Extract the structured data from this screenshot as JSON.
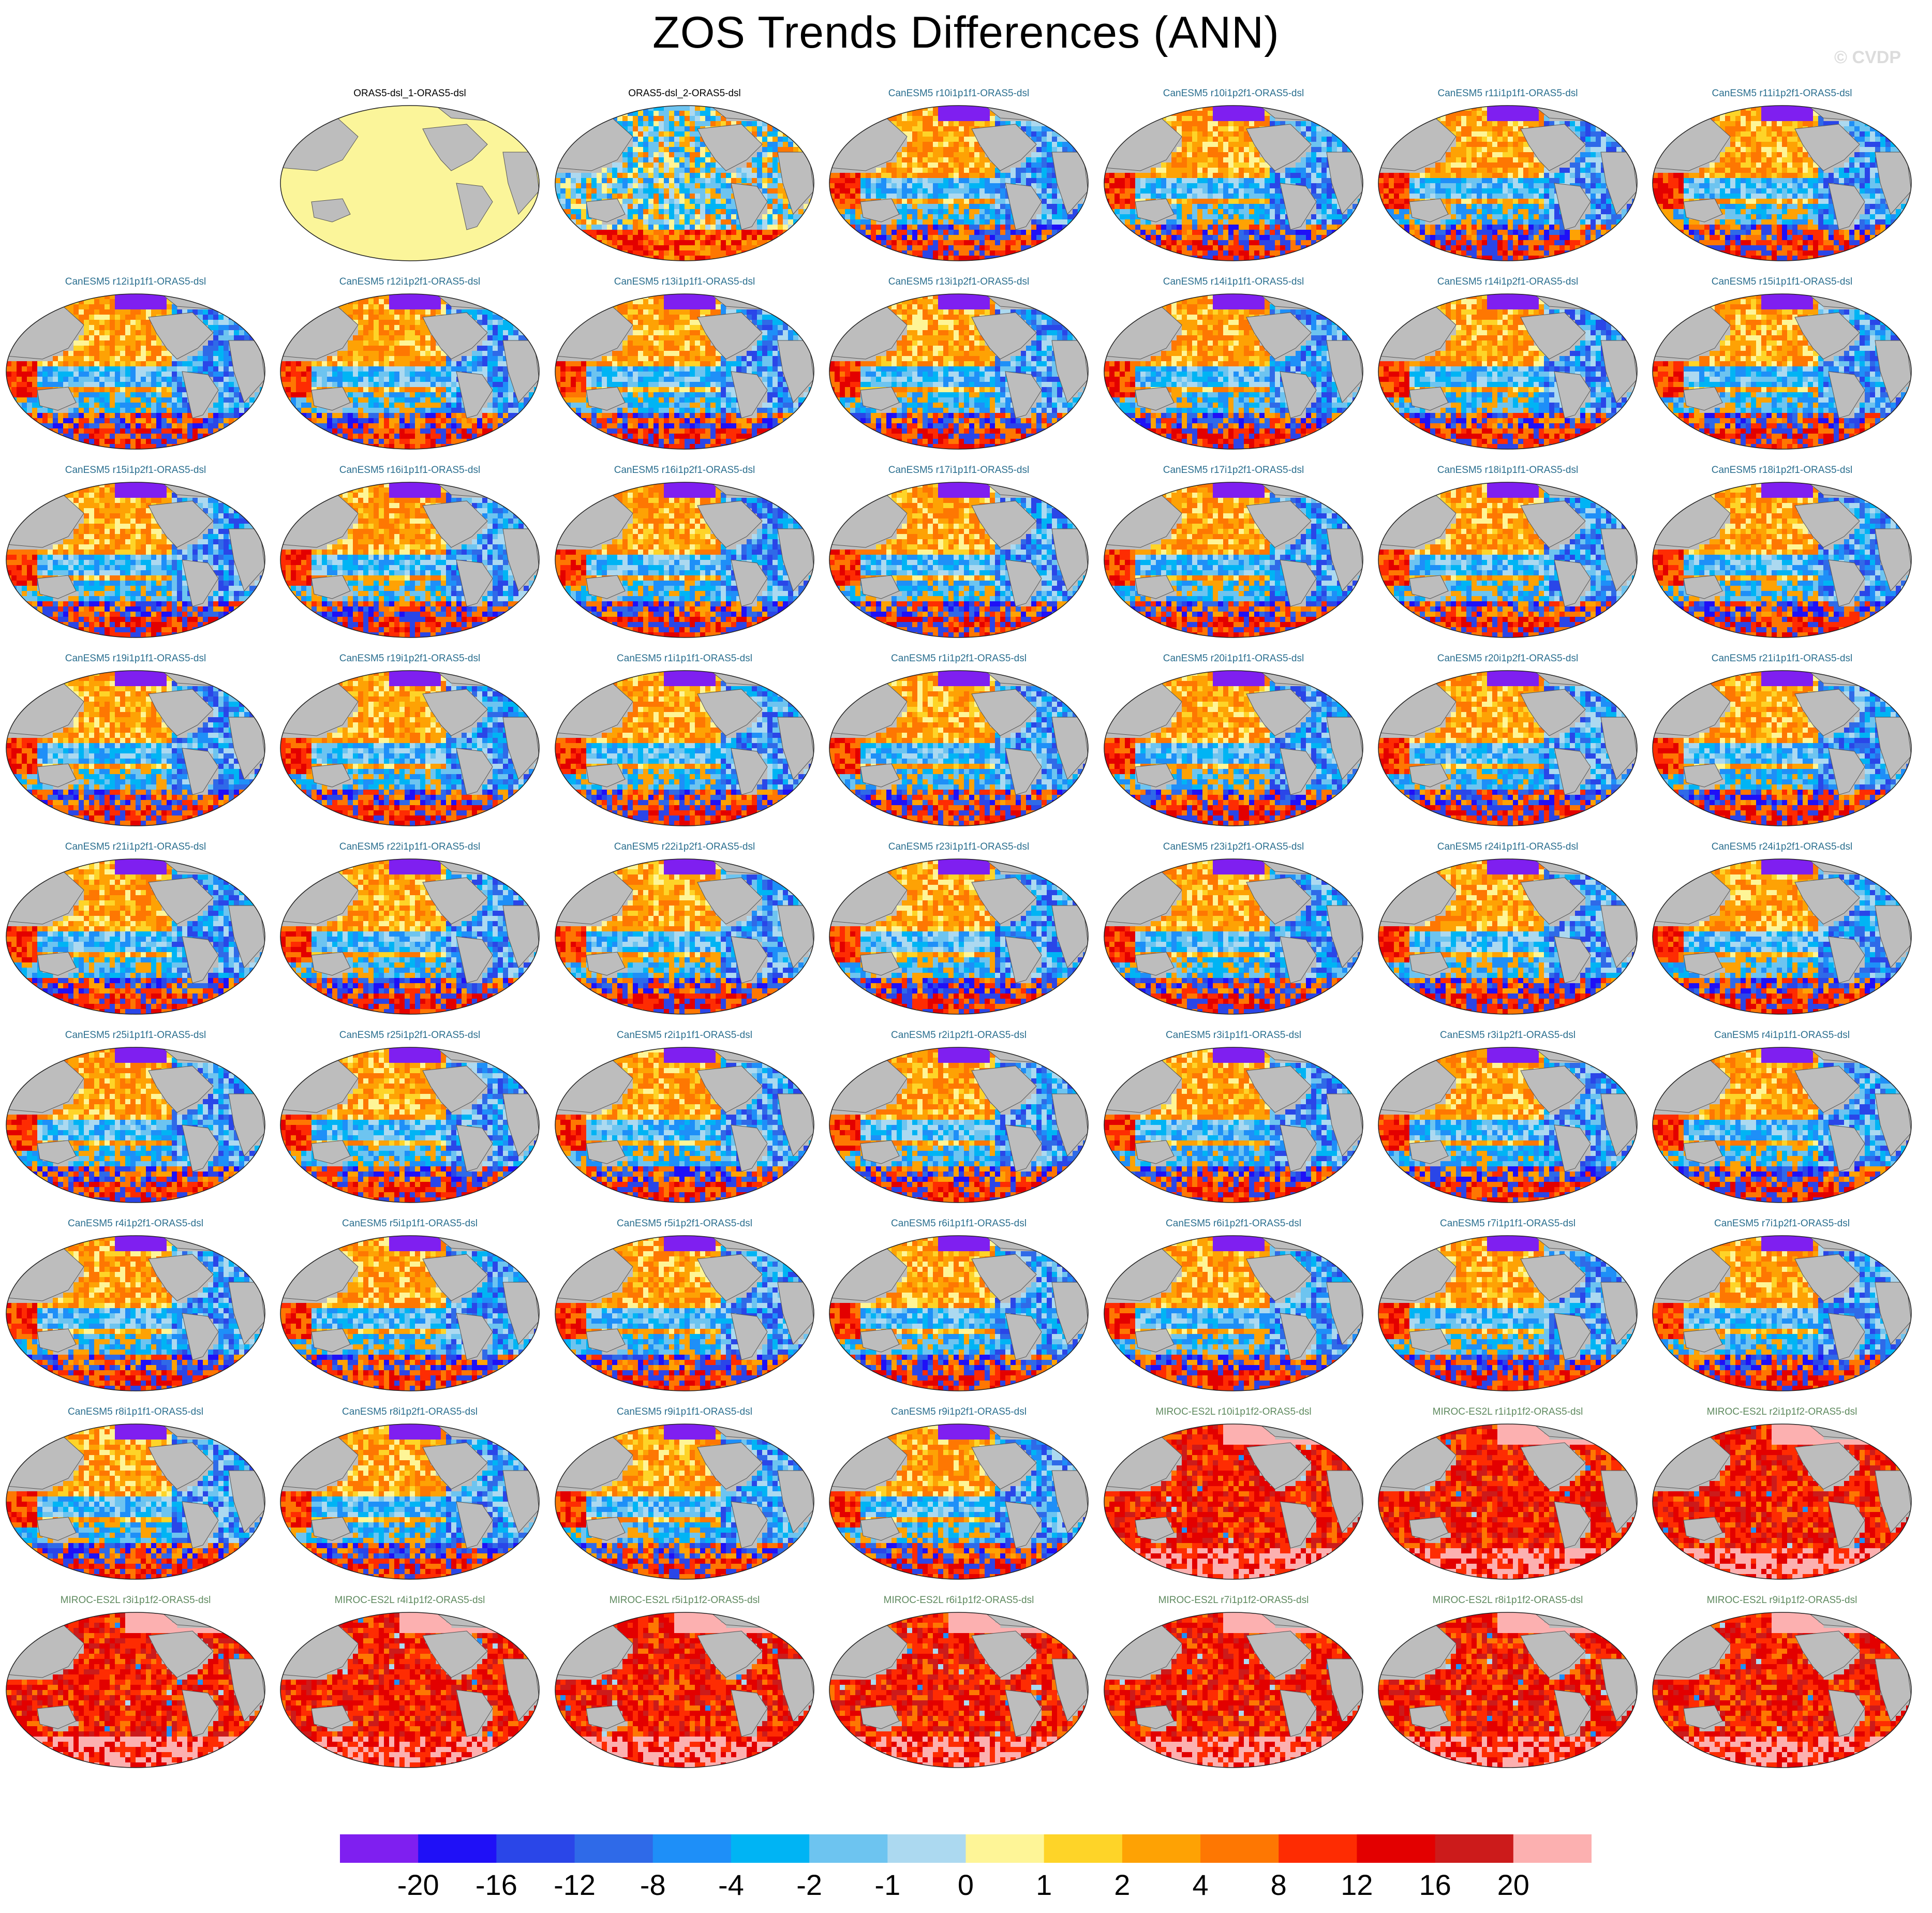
{
  "title": "ZOS Trends Differences (ANN)",
  "credit": "© CVDP",
  "colors": {
    "land": "#bdbdbd",
    "observation_fill": "#fbf59a",
    "levels": [
      "#7f1ff0",
      "#1f10f7",
      "#2a46e8",
      "#2f6ae8",
      "#1e8ff8",
      "#00b4f4",
      "#6dc4f0",
      "#acd9f0",
      "#fef597",
      "#fed428",
      "#fea204",
      "#fe7702",
      "#fe2c02",
      "#e30000",
      "#cc1b1b",
      "#fcb0b0"
    ]
  },
  "colorbar": {
    "labels": [
      "-20",
      "-16",
      "-12",
      "-8",
      "-4",
      "-2",
      "-1",
      "0",
      "1",
      "2",
      "4",
      "8",
      "12",
      "16",
      "20"
    ]
  },
  "panels": [
    {
      "label": "ORAS5-dsl_1-ORAS5-dsl",
      "kind": "obs"
    },
    {
      "label": "ORAS5-dsl_2-ORAS5-dsl",
      "kind": "mixed"
    },
    {
      "label": "CanESM5 r10i1p1f1-ORAS5-dsl",
      "kind": "can"
    },
    {
      "label": "CanESM5 r10i1p2f1-ORAS5-dsl",
      "kind": "can"
    },
    {
      "label": "CanESM5 r11i1p1f1-ORAS5-dsl",
      "kind": "can"
    },
    {
      "label": "CanESM5 r11i1p2f1-ORAS5-dsl",
      "kind": "can"
    },
    {
      "label": "CanESM5 r12i1p1f1-ORAS5-dsl",
      "kind": "can"
    },
    {
      "label": "CanESM5 r12i1p2f1-ORAS5-dsl",
      "kind": "can"
    },
    {
      "label": "CanESM5 r13i1p1f1-ORAS5-dsl",
      "kind": "can"
    },
    {
      "label": "CanESM5 r13i1p2f1-ORAS5-dsl",
      "kind": "can"
    },
    {
      "label": "CanESM5 r14i1p1f1-ORAS5-dsl",
      "kind": "can"
    },
    {
      "label": "CanESM5 r14i1p2f1-ORAS5-dsl",
      "kind": "can"
    },
    {
      "label": "CanESM5 r15i1p1f1-ORAS5-dsl",
      "kind": "can"
    },
    {
      "label": "CanESM5 r15i1p2f1-ORAS5-dsl",
      "kind": "can"
    },
    {
      "label": "CanESM5 r16i1p1f1-ORAS5-dsl",
      "kind": "can"
    },
    {
      "label": "CanESM5 r16i1p2f1-ORAS5-dsl",
      "kind": "can"
    },
    {
      "label": "CanESM5 r17i1p1f1-ORAS5-dsl",
      "kind": "can"
    },
    {
      "label": "CanESM5 r17i1p2f1-ORAS5-dsl",
      "kind": "can"
    },
    {
      "label": "CanESM5 r18i1p1f1-ORAS5-dsl",
      "kind": "can"
    },
    {
      "label": "CanESM5 r18i1p2f1-ORAS5-dsl",
      "kind": "can"
    },
    {
      "label": "CanESM5 r19i1p1f1-ORAS5-dsl",
      "kind": "can"
    },
    {
      "label": "CanESM5 r19i1p2f1-ORAS5-dsl",
      "kind": "can"
    },
    {
      "label": "CanESM5 r1i1p1f1-ORAS5-dsl",
      "kind": "can"
    },
    {
      "label": "CanESM5 r1i1p2f1-ORAS5-dsl",
      "kind": "can"
    },
    {
      "label": "CanESM5 r20i1p1f1-ORAS5-dsl",
      "kind": "can"
    },
    {
      "label": "CanESM5 r20i1p2f1-ORAS5-dsl",
      "kind": "can"
    },
    {
      "label": "CanESM5 r21i1p1f1-ORAS5-dsl",
      "kind": "can"
    },
    {
      "label": "CanESM5 r21i1p2f1-ORAS5-dsl",
      "kind": "can"
    },
    {
      "label": "CanESM5 r22i1p1f1-ORAS5-dsl",
      "kind": "can"
    },
    {
      "label": "CanESM5 r22i1p2f1-ORAS5-dsl",
      "kind": "can"
    },
    {
      "label": "CanESM5 r23i1p1f1-ORAS5-dsl",
      "kind": "can"
    },
    {
      "label": "CanESM5 r23i1p2f1-ORAS5-dsl",
      "kind": "can"
    },
    {
      "label": "CanESM5 r24i1p1f1-ORAS5-dsl",
      "kind": "can"
    },
    {
      "label": "CanESM5 r24i1p2f1-ORAS5-dsl",
      "kind": "can"
    },
    {
      "label": "CanESM5 r25i1p1f1-ORAS5-dsl",
      "kind": "can"
    },
    {
      "label": "CanESM5 r25i1p2f1-ORAS5-dsl",
      "kind": "can"
    },
    {
      "label": "CanESM5 r2i1p1f1-ORAS5-dsl",
      "kind": "can"
    },
    {
      "label": "CanESM5 r2i1p2f1-ORAS5-dsl",
      "kind": "can"
    },
    {
      "label": "CanESM5 r3i1p1f1-ORAS5-dsl",
      "kind": "can"
    },
    {
      "label": "CanESM5 r3i1p2f1-ORAS5-dsl",
      "kind": "can"
    },
    {
      "label": "CanESM5 r4i1p1f1-ORAS5-dsl",
      "kind": "can"
    },
    {
      "label": "CanESM5 r4i1p2f1-ORAS5-dsl",
      "kind": "can"
    },
    {
      "label": "CanESM5 r5i1p1f1-ORAS5-dsl",
      "kind": "can"
    },
    {
      "label": "CanESM5 r5i1p2f1-ORAS5-dsl",
      "kind": "can"
    },
    {
      "label": "CanESM5 r6i1p1f1-ORAS5-dsl",
      "kind": "can"
    },
    {
      "label": "CanESM5 r6i1p2f1-ORAS5-dsl",
      "kind": "can"
    },
    {
      "label": "CanESM5 r7i1p1f1-ORAS5-dsl",
      "kind": "can"
    },
    {
      "label": "CanESM5 r7i1p2f1-ORAS5-dsl",
      "kind": "can"
    },
    {
      "label": "CanESM5 r8i1p1f1-ORAS5-dsl",
      "kind": "can"
    },
    {
      "label": "CanESM5 r8i1p2f1-ORAS5-dsl",
      "kind": "can"
    },
    {
      "label": "CanESM5 r9i1p1f1-ORAS5-dsl",
      "kind": "can"
    },
    {
      "label": "CanESM5 r9i1p2f1-ORAS5-dsl",
      "kind": "can"
    },
    {
      "label": "MIROC-ES2L r10i1p1f2-ORAS5-dsl",
      "kind": "mir"
    },
    {
      "label": "MIROC-ES2L r1i1p1f2-ORAS5-dsl",
      "kind": "mir"
    },
    {
      "label": "MIROC-ES2L r2i1p1f2-ORAS5-dsl",
      "kind": "mir"
    },
    {
      "label": "MIROC-ES2L r3i1p1f2-ORAS5-dsl",
      "kind": "mir"
    },
    {
      "label": "MIROC-ES2L r4i1p1f2-ORAS5-dsl",
      "kind": "mir"
    },
    {
      "label": "MIROC-ES2L r5i1p1f2-ORAS5-dsl",
      "kind": "mir"
    },
    {
      "label": "MIROC-ES2L r6i1p1f2-ORAS5-dsl",
      "kind": "mir"
    },
    {
      "label": "MIROC-ES2L r7i1p1f2-ORAS5-dsl",
      "kind": "mir"
    },
    {
      "label": "MIROC-ES2L r8i1p1f2-ORAS5-dsl",
      "kind": "mir"
    },
    {
      "label": "MIROC-ES2L r9i1p1f2-ORAS5-dsl",
      "kind": "mir"
    }
  ]
}
